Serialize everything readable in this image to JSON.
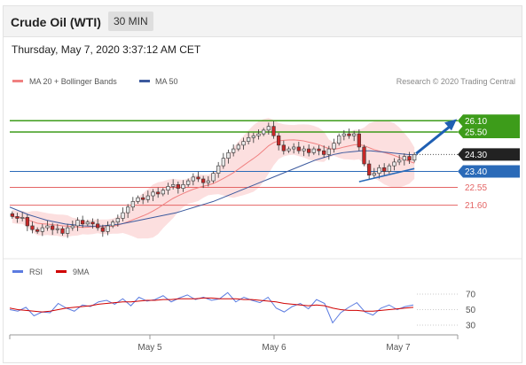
{
  "header": {
    "title": "Crude Oil (WTI)",
    "timeframe": "30 MIN",
    "datetime": "Thursday, May 7, 2020 3:37:12 AM CET"
  },
  "legend": {
    "ma20_bb": "MA 20 + Bollinger Bands",
    "ma50": "MA 50",
    "research": "Research © 2020 Trading Central",
    "rsi": "RSI",
    "ma9": "9MA"
  },
  "colors": {
    "resistance": "#3d9c1a",
    "support": "#2a6ab8",
    "support_red": "#e46565",
    "ma50": "#3c5a9e",
    "ma20": "#f08080",
    "bb_fill": "#fbd4d4",
    "rsi": "#5b7be0",
    "rsi_ma": "#d00000",
    "candle_up": "#e7e7e7",
    "candle_down": "#c62828",
    "last_price": "#222222",
    "arrow": "#1f5fb3"
  },
  "chart_data": [
    {
      "type": "candlestick",
      "x_axis": {
        "labels": [
          "May 5",
          "May 6",
          "May 7"
        ]
      },
      "ylim": [
        19.2,
        27.6
      ],
      "levels": [
        {
          "value": 26.1,
          "label": "26.10",
          "kind": "resistance"
        },
        {
          "value": 25.5,
          "label": "25.50",
          "kind": "resistance"
        },
        {
          "value": 24.3,
          "label": "24.30",
          "kind": "last"
        },
        {
          "value": 23.4,
          "label": "23.40",
          "kind": "pivot"
        },
        {
          "value": 22.55,
          "label": "22.55",
          "kind": "support"
        },
        {
          "value": 21.6,
          "label": "21.60",
          "kind": "support"
        }
      ],
      "close": [
        21.0,
        20.9,
        20.95,
        20.5,
        20.3,
        20.2,
        20.4,
        20.5,
        20.3,
        20.35,
        20.1,
        20.4,
        20.5,
        20.8,
        20.6,
        20.7,
        20.6,
        20.4,
        20.2,
        20.5,
        20.7,
        20.9,
        21.2,
        21.5,
        21.8,
        22.0,
        21.9,
        22.1,
        22.3,
        22.2,
        22.4,
        22.6,
        22.7,
        22.5,
        22.7,
        22.9,
        23.1,
        23.0,
        22.8,
        22.9,
        23.3,
        23.7,
        24.1,
        24.4,
        24.6,
        24.8,
        25.0,
        25.2,
        25.3,
        25.4,
        25.6,
        25.8,
        25.3,
        24.8,
        24.5,
        24.6,
        24.7,
        24.5,
        24.6,
        24.4,
        24.6,
        24.5,
        24.3,
        24.6,
        24.9,
        25.3,
        25.4,
        25.3,
        25.4,
        24.7,
        23.8,
        23.2,
        23.3,
        23.6,
        23.4,
        23.7,
        23.9,
        24.0,
        24.2,
        24.0,
        24.3
      ],
      "ma50": [
        21.5,
        21.3,
        21.1,
        20.95,
        20.8,
        20.7,
        20.6,
        20.55,
        20.5,
        20.48,
        20.5,
        20.55,
        20.6,
        20.7,
        20.8,
        20.9,
        21.0,
        21.1,
        21.2,
        21.35,
        21.5,
        21.65,
        21.8,
        22.0,
        22.2,
        22.4,
        22.6,
        22.8,
        23.0,
        23.2,
        23.4,
        23.6,
        23.8,
        24.0,
        24.15,
        24.3,
        24.4,
        24.45,
        24.5,
        24.5,
        24.45,
        24.4,
        24.35,
        24.3,
        24.28
      ]
    },
    {
      "type": "line",
      "title": "RSI",
      "y_ticks": [
        70,
        50,
        30
      ],
      "series": [
        {
          "name": "RSI",
          "values": [
            50,
            48,
            53,
            42,
            47,
            46,
            58,
            52,
            48,
            56,
            54,
            60,
            62,
            57,
            64,
            55,
            66,
            61,
            63,
            68,
            60,
            65,
            69,
            63,
            66,
            62,
            64,
            72,
            60,
            66,
            62,
            59,
            66,
            52,
            47,
            54,
            58,
            51,
            63,
            58,
            33,
            46,
            53,
            59,
            47,
            43,
            52,
            56,
            50,
            54,
            56
          ]
        },
        {
          "name": "9MA",
          "values": [
            52,
            50,
            49,
            48,
            47,
            48,
            50,
            52,
            53,
            54,
            55,
            57,
            58,
            59,
            60,
            60,
            61,
            62,
            62,
            63,
            63,
            64,
            64,
            64,
            65,
            65,
            64,
            64,
            64,
            63,
            63,
            62,
            61,
            60,
            58,
            57,
            56,
            55,
            56,
            55,
            52,
            50,
            49,
            49,
            48,
            48,
            49,
            50,
            51,
            52,
            53
          ]
        }
      ]
    }
  ]
}
